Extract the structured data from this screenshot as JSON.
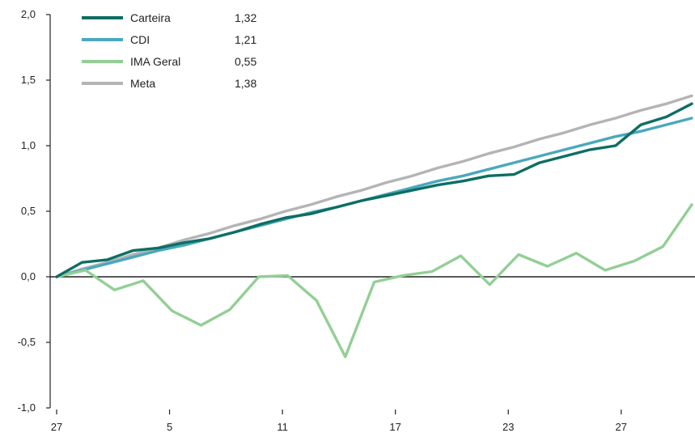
{
  "chart_data": {
    "type": "line",
    "title": "",
    "xlabel": "",
    "ylabel": "",
    "ylim": [
      -1.0,
      2.0
    ],
    "yticks": [
      -1.0,
      -0.5,
      0.0,
      0.5,
      1.0,
      1.5,
      2.0
    ],
    "ytick_labels": [
      "-1,0",
      "-0,5",
      "0,0",
      "0,5",
      "1,0",
      "1,5",
      "2,0"
    ],
    "x_index": [
      0,
      1,
      2,
      3,
      4,
      5,
      6,
      7,
      8,
      9,
      10,
      11,
      12,
      13,
      14,
      15,
      16,
      17,
      18,
      19,
      20,
      21,
      22,
      23,
      24,
      25,
      26,
      27,
      28,
      29,
      30,
      31,
      32,
      33,
      34,
      35,
      36,
      37,
      38,
      39,
      40,
      41,
      42,
      43,
      44,
      45
    ],
    "xticks": [
      {
        "index": 0,
        "label": "27"
      },
      {
        "index": 8,
        "label": "5"
      },
      {
        "index": 16,
        "label": "11"
      },
      {
        "index": 24,
        "label": "17"
      },
      {
        "index": 32,
        "label": "23"
      },
      {
        "index": 40,
        "label": "27"
      }
    ],
    "grid": false,
    "zero_line": true,
    "legend_position": "top-left",
    "series": [
      {
        "name": "Carteira",
        "legend_value": "1,32",
        "color": "#0e6e63",
        "values": [
          0.0,
          0.11,
          0.13,
          0.2,
          0.22,
          0.26,
          0.29,
          0.34,
          0.4,
          0.45,
          0.48,
          0.53,
          0.58,
          0.62,
          0.66,
          0.7,
          0.73,
          0.77,
          0.78,
          0.87,
          0.92,
          0.97,
          1.0,
          1.16,
          1.22,
          1.32
        ]
      },
      {
        "name": "CDI",
        "legend_value": "1,21",
        "color": "#4aa8bd",
        "values": [
          0.0,
          0.05,
          0.1,
          0.15,
          0.2,
          0.24,
          0.29,
          0.34,
          0.39,
          0.44,
          0.49,
          0.53,
          0.58,
          0.63,
          0.68,
          0.73,
          0.77,
          0.82,
          0.87,
          0.92,
          0.97,
          1.02,
          1.07,
          1.11,
          1.16,
          1.21
        ]
      },
      {
        "name": "IMA Geral",
        "legend_value": "0,55",
        "color": "#93cf95",
        "values": [
          0.0,
          0.05,
          -0.1,
          -0.03,
          -0.26,
          -0.37,
          -0.25,
          0.0,
          0.01,
          -0.18,
          -0.61,
          -0.04,
          0.01,
          0.04,
          0.16,
          -0.06,
          0.17,
          0.08,
          0.18,
          0.05,
          0.12,
          0.23,
          0.55
        ]
      },
      {
        "name": "Meta",
        "legend_value": "1,38",
        "color": "#b4b4b6",
        "values": [
          0.0,
          0.06,
          0.11,
          0.17,
          0.22,
          0.28,
          0.33,
          0.39,
          0.44,
          0.5,
          0.55,
          0.61,
          0.66,
          0.72,
          0.77,
          0.83,
          0.88,
          0.94,
          0.99,
          1.05,
          1.1,
          1.16,
          1.21,
          1.27,
          1.32,
          1.38
        ]
      }
    ]
  }
}
